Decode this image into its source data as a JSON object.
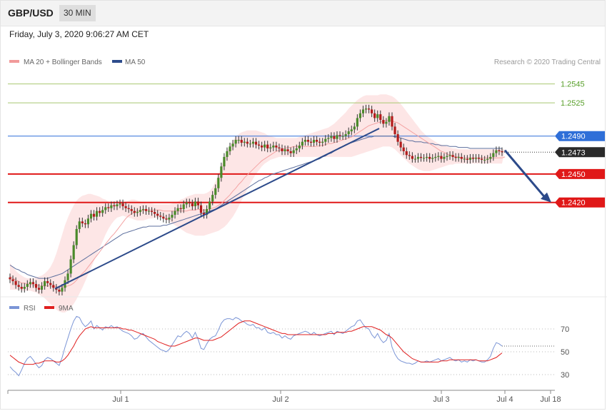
{
  "header": {
    "symbol": "GBP/USD",
    "timeframe": "30 MIN"
  },
  "datetime": "Friday, July 3, 2020 9:06:27 AM CET",
  "legend": {
    "ma20": "MA 20 + Bollinger Bands",
    "ma50": "MA 50"
  },
  "credit": "Research © 2020 Trading Central",
  "colors": {
    "up": "#4a8a2a",
    "down": "#b31b1b",
    "band": "#fde2e2",
    "ma20": "#f4a3a3",
    "ma50": "#5d6f9e",
    "rsi": "#7b95d6",
    "ma9": "#e02020",
    "trend": "#2c4a8a"
  },
  "chart_data": [
    {
      "type": "candlestick",
      "title": "",
      "price_axis": {
        "min": 1.2325,
        "max": 1.2562
      },
      "x_labels": [
        "Jul 1",
        "Jul 2",
        "Jul 3",
        "Jul 4",
        "Jul 18"
      ],
      "levels": [
        {
          "value": 1.2545,
          "label": "1.2545",
          "color": "#a8c870",
          "kind": "resistance"
        },
        {
          "value": 1.2525,
          "label": "1.2525",
          "color": "#a8c870",
          "kind": "resistance"
        },
        {
          "value": 1.249,
          "label": "1.2490",
          "color": "#2f6fd8",
          "kind": "pivot"
        },
        {
          "value": 1.245,
          "label": "1.2450",
          "color": "#e01818",
          "kind": "support"
        },
        {
          "value": 1.242,
          "label": "1.2420",
          "color": "#e01818",
          "kind": "support"
        }
      ],
      "last_price": {
        "value": 1.2473,
        "label": "1.2473"
      },
      "closes": [
        1.2339,
        1.2337,
        1.2333,
        1.2331,
        1.2329,
        1.2331,
        1.2334,
        1.2336,
        1.2334,
        1.233,
        1.2328,
        1.2332,
        1.2337,
        1.2335,
        1.2333,
        1.233,
        1.2328,
        1.2326,
        1.233,
        1.2338,
        1.2345,
        1.236,
        1.2375,
        1.2392,
        1.24,
        1.2398,
        1.2397,
        1.2403,
        1.2408,
        1.2405,
        1.2411,
        1.2409,
        1.2412,
        1.2415,
        1.2414,
        1.2417,
        1.2416,
        1.2418,
        1.2419,
        1.2416,
        1.2414,
        1.2413,
        1.2411,
        1.2409,
        1.241,
        1.2412,
        1.2413,
        1.2411,
        1.2411,
        1.241,
        1.2408,
        1.2406,
        1.2405,
        1.2403,
        1.2402,
        1.2404,
        1.2407,
        1.2411,
        1.2414,
        1.2413,
        1.2418,
        1.242,
        1.2419,
        1.2416,
        1.2421,
        1.2417,
        1.2409,
        1.2407,
        1.2413,
        1.2421,
        1.2428,
        1.2435,
        1.2446,
        1.2458,
        1.2468,
        1.2474,
        1.2479,
        1.2482,
        1.2486,
        1.2486,
        1.2483,
        1.2484,
        1.2482,
        1.2482,
        1.2484,
        1.2481,
        1.248,
        1.2478,
        1.2481,
        1.2477,
        1.2478,
        1.248,
        1.2478,
        1.2477,
        1.2474,
        1.2476,
        1.2474,
        1.2472,
        1.2475,
        1.2477,
        1.248,
        1.2484,
        1.2486,
        1.2484,
        1.2483,
        1.2486,
        1.2484,
        1.2483,
        1.2484,
        1.2487,
        1.2488,
        1.249,
        1.2487,
        1.2491,
        1.249,
        1.249,
        1.2492,
        1.2495,
        1.2497,
        1.25,
        1.2509,
        1.2514,
        1.2518,
        1.2519,
        1.2518,
        1.2514,
        1.2509,
        1.2513,
        1.2507,
        1.2503,
        1.2505,
        1.2511,
        1.25,
        1.2492,
        1.2484,
        1.2478,
        1.2474,
        1.247,
        1.2469,
        1.2466,
        1.2466,
        1.2468,
        1.2467,
        1.2467,
        1.2468,
        1.2466,
        1.2467,
        1.2468,
        1.2469,
        1.2466,
        1.2468,
        1.2469,
        1.247,
        1.2468,
        1.2467,
        1.2468,
        1.2466,
        1.2466,
        1.2465,
        1.2467,
        1.2466,
        1.2467,
        1.2466,
        1.2465,
        1.2465,
        1.2466,
        1.2468,
        1.2472,
        1.2475,
        1.2474,
        1.2473
      ],
      "ma20": [
        1.2342,
        1.234,
        1.2338,
        1.2337,
        1.2335,
        1.2335,
        1.2334,
        1.2334,
        1.2333,
        1.2333,
        1.2332,
        1.2332,
        1.2332,
        1.2332,
        1.2332,
        1.2331,
        1.2331,
        1.2331,
        1.2331,
        1.2331,
        1.2332,
        1.2333,
        1.2335,
        1.2338,
        1.2342,
        1.2345,
        1.2348,
        1.2352,
        1.2356,
        1.236,
        1.2364,
        1.2368,
        1.2372,
        1.2376,
        1.238,
        1.2384,
        1.2387,
        1.2391,
        1.2395,
        1.2399,
        1.2403,
        1.2406,
        1.2408,
        1.241,
        1.2411,
        1.2411,
        1.2412,
        1.2412,
        1.2412,
        1.2412,
        1.2412,
        1.2412,
        1.2412,
        1.2411,
        1.2411,
        1.2411,
        1.2411,
        1.2411,
        1.2411,
        1.2411,
        1.2411,
        1.2411,
        1.2412,
        1.2412,
        1.2412,
        1.2413,
        1.2412,
        1.2412,
        1.2412,
        1.2413,
        1.2414,
        1.2415,
        1.2417,
        1.2419,
        1.2422,
        1.2425,
        1.2428,
        1.2432,
        1.2435,
        1.2439,
        1.2442,
        1.2446,
        1.2449,
        1.2452,
        1.2455,
        1.2458,
        1.2461,
        1.2464,
        1.2466,
        1.2468,
        1.247,
        1.2472,
        1.2474,
        1.2475,
        1.2476,
        1.2477,
        1.2478,
        1.2478,
        1.2479,
        1.2479,
        1.2479,
        1.2479,
        1.2479,
        1.2479,
        1.2479,
        1.2479,
        1.2479,
        1.248,
        1.248,
        1.2481,
        1.2482,
        1.2482,
        1.2483,
        1.2484,
        1.2485,
        1.2486,
        1.2487,
        1.2488,
        1.2489,
        1.2491,
        1.2493,
        1.2495,
        1.2497,
        1.2499,
        1.2501,
        1.2502,
        1.2503,
        1.2504,
        1.2505,
        1.2506,
        1.2506,
        1.2507,
        1.2506,
        1.2505,
        1.2504,
        1.2502,
        1.25,
        1.2498,
        1.2496,
        1.2494,
        1.2492,
        1.249,
        1.2488,
        1.2486,
        1.2484,
        1.2482,
        1.248,
        1.2478,
        1.2476,
        1.2474,
        1.2473,
        1.2471,
        1.247,
        1.2469,
        1.2468,
        1.2468,
        1.2467,
        1.2467,
        1.2467,
        1.2467,
        1.2467,
        1.2467,
        1.2467,
        1.2467,
        1.2467,
        1.2467,
        1.2467,
        1.2467,
        1.2467,
        1.2467,
        1.2467,
        1.2468
      ],
      "band_upper": [
        1.2356,
        1.2352,
        1.2348,
        1.2345,
        1.2343,
        1.2341,
        1.234,
        1.234,
        1.234,
        1.2341,
        1.2342,
        1.2343,
        1.2345,
        1.2348,
        1.2352,
        1.2358,
        1.2366,
        1.2376,
        1.2386,
        1.2396,
        1.2404,
        1.2411,
        1.2417,
        1.2422,
        1.2425,
        1.2427,
        1.2428,
        1.2429,
        1.2429,
        1.2428,
        1.2427,
        1.2426,
        1.2424,
        1.2423,
        1.2421,
        1.242,
        1.2419,
        1.2418,
        1.2419,
        1.242,
        1.2421,
        1.2422,
        1.2423,
        1.2423,
        1.2422,
        1.2421,
        1.242,
        1.2419,
        1.2419,
        1.2419,
        1.2418,
        1.2418,
        1.2418,
        1.2418,
        1.2418,
        1.2418,
        1.2419,
        1.242,
        1.2421,
        1.2423,
        1.2424,
        1.2426,
        1.2427,
        1.2428,
        1.2429,
        1.2429,
        1.2429,
        1.2429,
        1.243,
        1.2432,
        1.2436,
        1.2442,
        1.245,
        1.2458,
        1.2466,
        1.2474,
        1.248,
        1.2485,
        1.2489,
        1.2492,
        1.2494,
        1.2495,
        1.2496,
        1.2496,
        1.2496,
        1.2496,
        1.2495,
        1.2494,
        1.2493,
        1.2491,
        1.249,
        1.2489,
        1.2488,
        1.2488,
        1.2488,
        1.2488,
        1.2488,
        1.2488,
        1.2488,
        1.2488,
        1.2489,
        1.249,
        1.2491,
        1.2492,
        1.2493,
        1.2494,
        1.2495,
        1.2496,
        1.2497,
        1.2498,
        1.2499,
        1.2501,
        1.2503,
        1.2506,
        1.2509,
        1.2512,
        1.2515,
        1.2519,
        1.2522,
        1.2525,
        1.2528,
        1.253,
        1.2532,
        1.2533,
        1.2533,
        1.2533,
        1.2533,
        1.2533,
        1.2534,
        1.2534,
        1.2534,
        1.2533,
        1.2532,
        1.253,
        1.2527,
        1.2524,
        1.252,
        1.2516,
        1.2512,
        1.2508,
        1.2504,
        1.25,
        1.2496,
        1.2493,
        1.249,
        1.2488,
        1.2486,
        1.2484,
        1.2482,
        1.2481,
        1.248,
        1.2479,
        1.2478,
        1.2477,
        1.2477,
        1.2476,
        1.2476,
        1.2476,
        1.2476,
        1.2476,
        1.2476,
        1.2476,
        1.2476,
        1.2476,
        1.2476,
        1.2476,
        1.2476,
        1.2476,
        1.2476,
        1.2476,
        1.2476,
        1.2476
      ],
      "band_lower": [
        1.2328,
        1.2328,
        1.2328,
        1.2328,
        1.2327,
        1.2327,
        1.2327,
        1.2327,
        1.2326,
        1.2325,
        1.2323,
        1.2321,
        1.2319,
        1.2316,
        1.2313,
        1.231,
        1.2307,
        1.2305,
        1.2304,
        1.2304,
        1.2306,
        1.2309,
        1.2313,
        1.2318,
        1.2324,
        1.233,
        1.2337,
        1.2344,
        1.2351,
        1.2358,
        1.2365,
        1.2372,
        1.2379,
        1.2386,
        1.2392,
        1.2397,
        1.2401,
        1.2404,
        1.2405,
        1.2406,
        1.2405,
        1.2404,
        1.2403,
        1.2402,
        1.2401,
        1.2401,
        1.2401,
        1.2402,
        1.2403,
        1.2403,
        1.2404,
        1.2404,
        1.2404,
        1.2403,
        1.2402,
        1.24,
        1.2398,
        1.2396,
        1.2394,
        1.2392,
        1.239,
        1.2388,
        1.2387,
        1.2386,
        1.2385,
        1.2385,
        1.2385,
        1.2385,
        1.2386,
        1.2387,
        1.2388,
        1.2389,
        1.239,
        1.2392,
        1.2394,
        1.2397,
        1.2401,
        1.2405,
        1.241,
        1.2416,
        1.2422,
        1.2428,
        1.2434,
        1.244,
        1.2445,
        1.245,
        1.2454,
        1.2458,
        1.2461,
        1.2463,
        1.2465,
        1.2466,
        1.2467,
        1.2468,
        1.2468,
        1.2468,
        1.2468,
        1.2468,
        1.2468,
        1.2468,
        1.2468,
        1.2468,
        1.2468,
        1.2468,
        1.2468,
        1.2468,
        1.2468,
        1.2468,
        1.2468,
        1.2468,
        1.2468,
        1.2468,
        1.2468,
        1.2468,
        1.2468,
        1.2468,
        1.2468,
        1.2468,
        1.2468,
        1.2469,
        1.247,
        1.2471,
        1.2472,
        1.2473,
        1.2474,
        1.2475,
        1.2476,
        1.2477,
        1.2478,
        1.2479,
        1.2479,
        1.2479,
        1.2478,
        1.2476,
        1.2473,
        1.247,
        1.2467,
        1.2464,
        1.2461,
        1.2459,
        1.2457,
        1.2455,
        1.2454,
        1.2453,
        1.2453,
        1.2453,
        1.2454,
        1.2455,
        1.2456,
        1.2457,
        1.2458,
        1.2459,
        1.246,
        1.246,
        1.2461,
        1.2461,
        1.2461,
        1.2461,
        1.2461,
        1.2461,
        1.2461,
        1.2461,
        1.2461,
        1.2461,
        1.2461,
        1.2461,
        1.2461,
        1.2461,
        1.2461,
        1.2461,
        1.2461
      ],
      "ma50": [
        1.2354,
        1.2352,
        1.235,
        1.2349,
        1.2347,
        1.2346,
        1.2344,
        1.2343,
        1.2342,
        1.2341,
        1.234,
        1.234,
        1.234,
        1.234,
        1.2341,
        1.2342,
        1.2343,
        1.2344,
        1.2345,
        1.2347,
        1.2349,
        1.2351,
        1.2353,
        1.2355,
        1.2357,
        1.2359,
        1.2361,
        1.2363,
        1.2365,
        1.2367,
        1.2369,
        1.2371,
        1.2373,
        1.2375,
        1.2377,
        1.2379,
        1.2381,
        1.2383,
        1.2385,
        1.2387,
        1.2388,
        1.2389,
        1.239,
        1.2391,
        1.2392,
        1.2393,
        1.2394,
        1.2394,
        1.2395,
        1.2395,
        1.2395,
        1.2395,
        1.2395,
        1.2396,
        1.2396,
        1.2397,
        1.2398,
        1.2399,
        1.24,
        1.2401,
        1.2402,
        1.2403,
        1.2404,
        1.2405,
        1.2406,
        1.2407,
        1.2408,
        1.2409,
        1.241,
        1.2411,
        1.2412,
        1.2413,
        1.2415,
        1.2417,
        1.2419,
        1.2421,
        1.2423,
        1.2425,
        1.2427,
        1.2429,
        1.2431,
        1.2433,
        1.2435,
        1.2437,
        1.2439,
        1.2441,
        1.2443,
        1.2444,
        1.2446,
        1.2447,
        1.2449,
        1.245,
        1.2451,
        1.2452,
        1.2453,
        1.2454,
        1.2455,
        1.2456,
        1.2457,
        1.2458,
        1.2459,
        1.246,
        1.2461,
        1.2462,
        1.2463,
        1.2464,
        1.2465,
        1.2466,
        1.2468,
        1.2469,
        1.2471,
        1.2472,
        1.2474,
        1.2476,
        1.2478,
        1.2479,
        1.2481,
        1.2482,
        1.2483,
        1.2484,
        1.2485,
        1.2486,
        1.2487,
        1.2488,
        1.2489,
        1.2489,
        1.249,
        1.249,
        1.249,
        1.249,
        1.249,
        1.249,
        1.249,
        1.2489,
        1.2489,
        1.2488,
        1.2487,
        1.2486,
        1.2485,
        1.2485,
        1.2484,
        1.2484,
        1.2484,
        1.2483,
        1.2483,
        1.2482,
        1.2482,
        1.2481,
        1.2481,
        1.248,
        1.248,
        1.248,
        1.2479,
        1.2479,
        1.2479,
        1.2478,
        1.2478,
        1.2478,
        1.2478,
        1.2477,
        1.2477,
        1.2477,
        1.2477,
        1.2477,
        1.2477,
        1.2477,
        1.2477,
        1.2477,
        1.2477,
        1.2477,
        1.2477
      ],
      "trendline": [
        {
          "x": 1.0,
          "y": 1.2329,
          "x2": 0,
          "y2": 0
        },
        {
          "x": 2.0,
          "y": 1.2498,
          "x2": 0,
          "y2": 0
        }
      ],
      "projection": {
        "from": 1.2475,
        "to": 1.242
      }
    },
    {
      "type": "line",
      "title": "",
      "legend": [
        "RSI",
        "9MA"
      ],
      "y_ticks": [
        70,
        50,
        30
      ],
      "ylim": [
        20,
        80
      ],
      "rsi": [
        37,
        34,
        32,
        29,
        34,
        40,
        44,
        46,
        43,
        39,
        36,
        38,
        43,
        45,
        44,
        42,
        40,
        38,
        45,
        54,
        62,
        70,
        77,
        81,
        80,
        75,
        72,
        74,
        77,
        70,
        73,
        71,
        69,
        72,
        71,
        73,
        71,
        72,
        70,
        68,
        67,
        66,
        64,
        61,
        62,
        65,
        66,
        63,
        60,
        58,
        56,
        54,
        52,
        51,
        50,
        52,
        56,
        60,
        64,
        63,
        66,
        68,
        66,
        62,
        67,
        61,
        53,
        52,
        57,
        61,
        63,
        64,
        69,
        75,
        78,
        79,
        79,
        78,
        80,
        79,
        77,
        76,
        74,
        73,
        74,
        71,
        71,
        69,
        71,
        67,
        66,
        67,
        65,
        65,
        62,
        64,
        62,
        61,
        64,
        65,
        66,
        67,
        68,
        67,
        65,
        67,
        65,
        64,
        65,
        66,
        67,
        68,
        65,
        68,
        67,
        66,
        68,
        70,
        72,
        73,
        77,
        78,
        74,
        71,
        70,
        65,
        62,
        66,
        61,
        58,
        60,
        66,
        54,
        48,
        44,
        42,
        41,
        40,
        40,
        39,
        40,
        42,
        41,
        41,
        42,
        41,
        42,
        43,
        44,
        42,
        43,
        44,
        45,
        43,
        42,
        43,
        41,
        42,
        41,
        43,
        42,
        43,
        42,
        41,
        41,
        43,
        46,
        53,
        58,
        57,
        55
      ],
      "ma9": [
        47,
        45,
        43,
        41,
        40,
        39,
        39,
        39,
        39,
        40,
        40,
        41,
        42,
        42,
        42,
        42,
        41,
        41,
        42,
        44,
        47,
        51,
        55,
        60,
        64,
        67,
        70,
        71,
        72,
        71,
        71,
        71,
        71,
        71,
        71,
        71,
        71,
        71,
        71,
        70,
        70,
        69,
        69,
        68,
        67,
        66,
        65,
        64,
        63,
        62,
        61,
        59,
        58,
        57,
        56,
        55,
        55,
        55,
        56,
        57,
        58,
        59,
        60,
        61,
        62,
        62,
        61,
        60,
        60,
        60,
        60,
        61,
        62,
        63,
        65,
        67,
        69,
        71,
        73,
        75,
        76,
        77,
        77,
        77,
        76,
        75,
        74,
        73,
        72,
        71,
        70,
        69,
        68,
        67,
        66,
        66,
        65,
        65,
        65,
        65,
        65,
        65,
        65,
        65,
        65,
        65,
        65,
        65,
        65,
        65,
        66,
        66,
        66,
        67,
        67,
        67,
        67,
        68,
        68,
        69,
        70,
        71,
        72,
        72,
        72,
        72,
        71,
        70,
        69,
        67,
        65,
        64,
        62,
        59,
        56,
        53,
        50,
        48,
        46,
        44,
        43,
        42,
        41,
        41,
        41,
        41,
        41,
        41,
        41,
        42,
        42,
        42,
        43,
        43,
        43,
        43,
        43,
        43,
        43,
        43,
        43,
        43,
        42,
        42,
        42,
        42,
        43,
        44,
        45,
        47,
        49
      ]
    }
  ]
}
